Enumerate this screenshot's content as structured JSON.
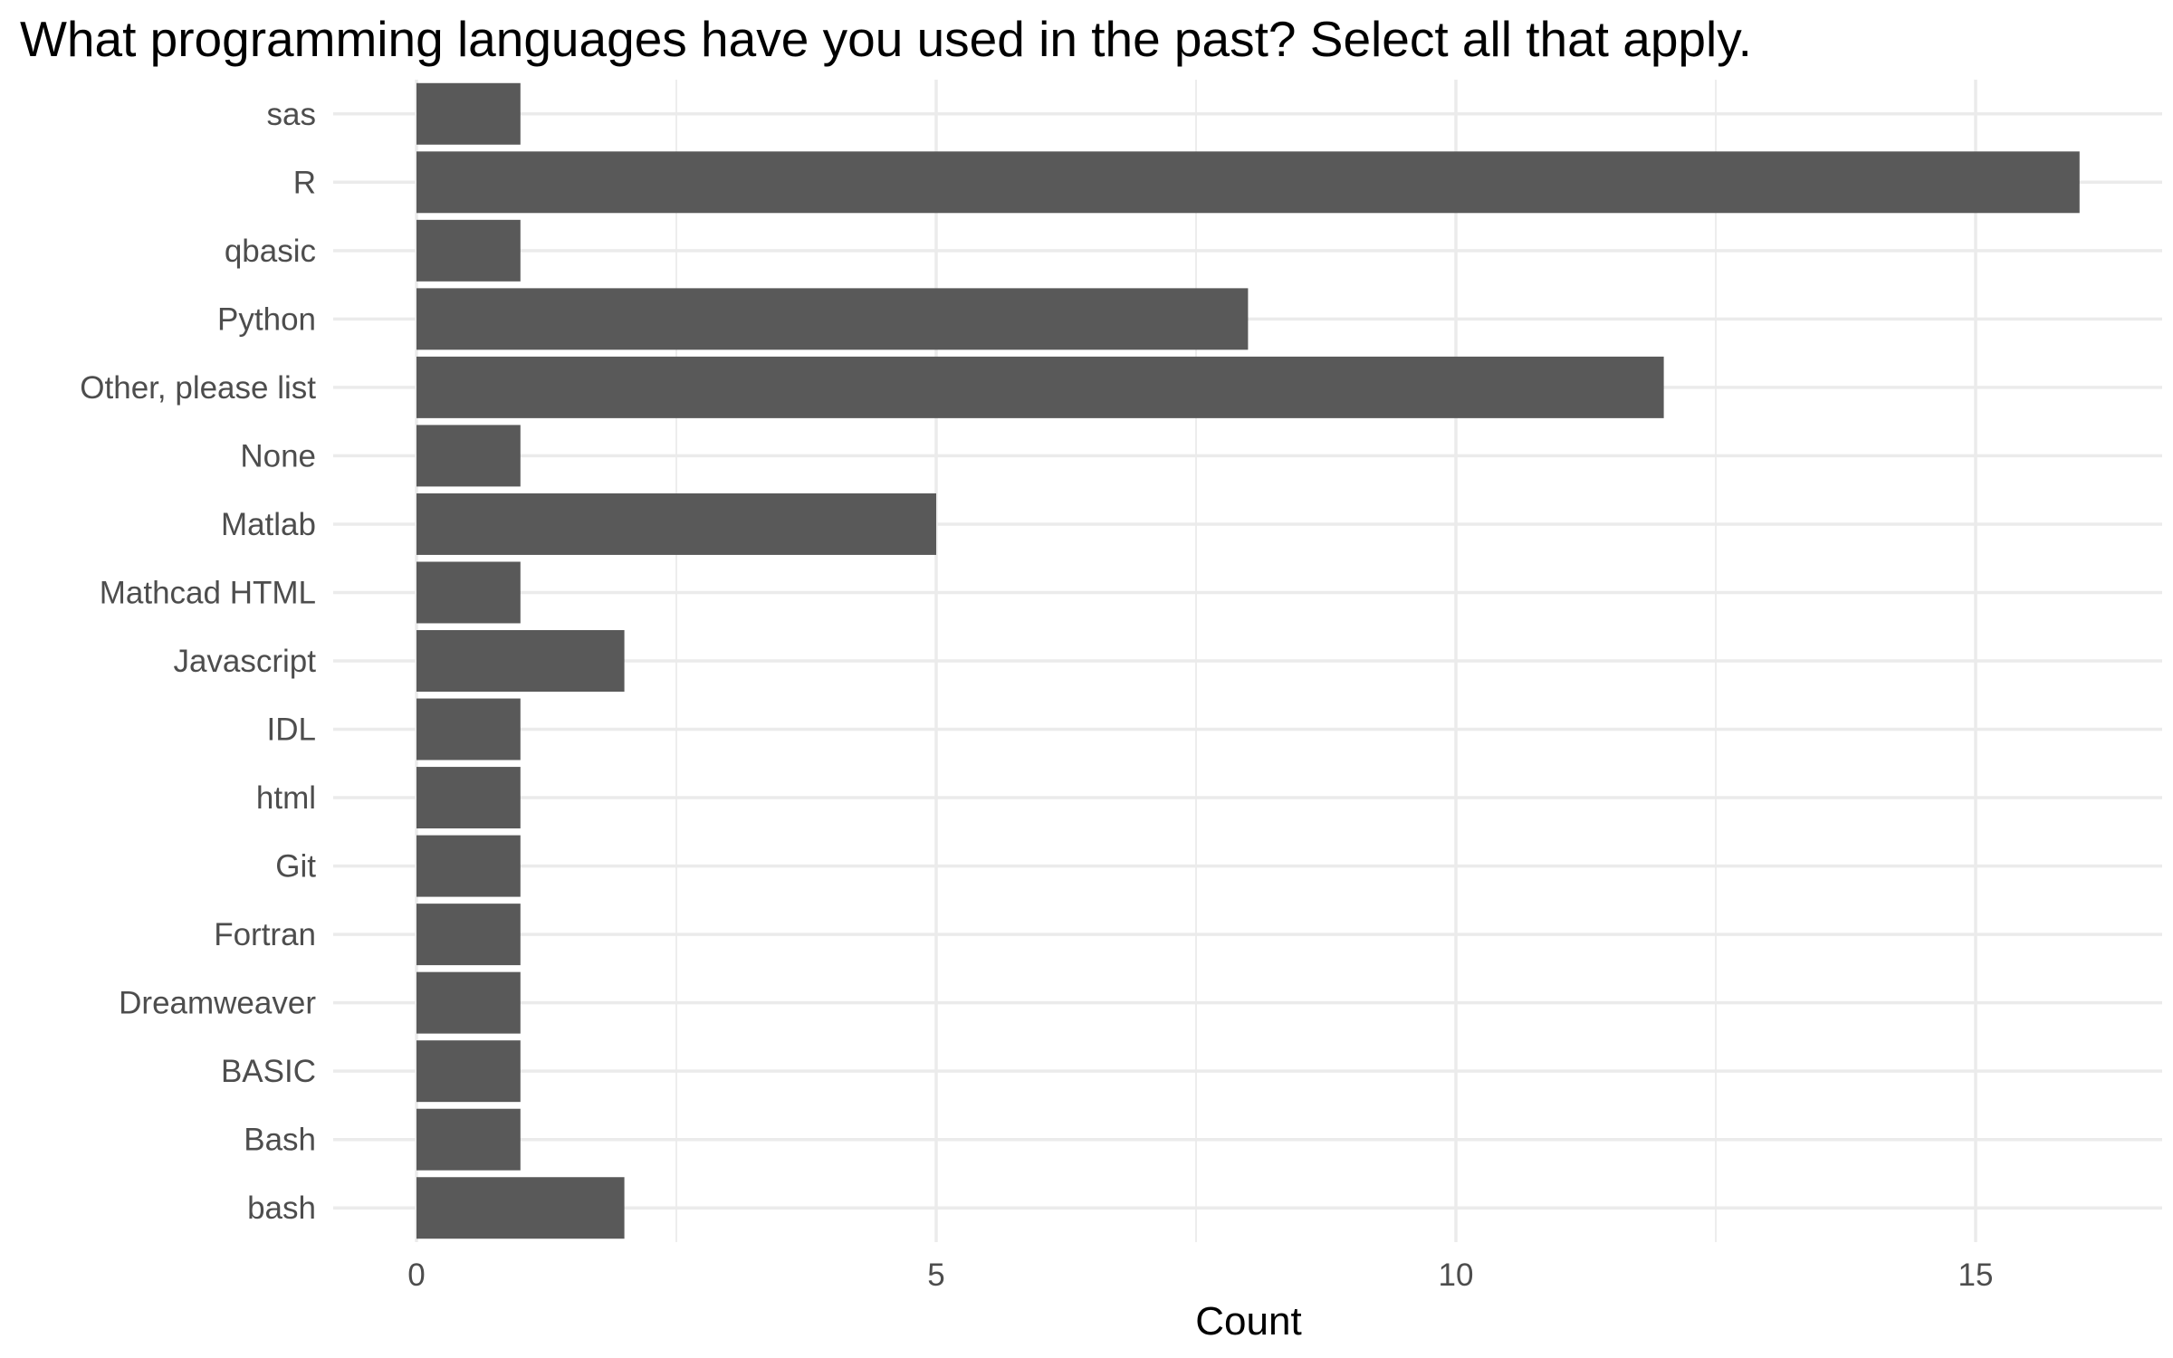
{
  "chart_data": {
    "type": "bar",
    "orientation": "horizontal",
    "title": "What programming languages have you used in the past? Select all that apply.",
    "xlabel": "Count",
    "ylabel": "",
    "categories": [
      "sas",
      "R",
      "qbasic",
      "Python",
      "Other, please list",
      "None",
      "Matlab",
      "Mathcad HTML",
      "Javascript",
      "IDL",
      "html",
      "Git",
      "Fortran",
      "Dreamweaver",
      "BASIC",
      "Bash",
      "bash"
    ],
    "values": [
      1,
      16,
      1,
      8,
      12,
      1,
      5,
      1,
      2,
      1,
      1,
      1,
      1,
      1,
      1,
      1,
      2
    ],
    "xlim": [
      0,
      16.8
    ],
    "x_ticks": [
      0,
      5,
      10,
      15
    ],
    "x_tick_labels": [
      "0",
      "5",
      "10",
      "15"
    ],
    "grid": true,
    "legend": "none",
    "bar_color": "#595959"
  }
}
